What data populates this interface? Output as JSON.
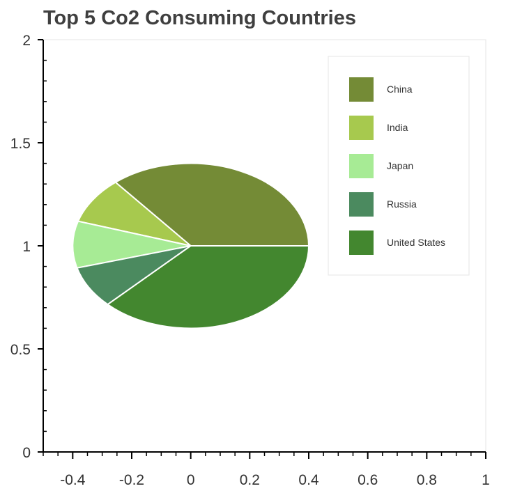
{
  "chart_data": {
    "type": "pie",
    "title": "Top 5 Co2 Consuming Countries",
    "xlabel": "",
    "ylabel": "",
    "xlim": [
      -0.5,
      1.0
    ],
    "ylim": [
      0,
      2
    ],
    "center": [
      0,
      1
    ],
    "radius": 0.4,
    "x_ticks": [
      -0.4,
      -0.2,
      0,
      0.2,
      0.4,
      0.6,
      0.8,
      1
    ],
    "x_tick_labels": [
      "-0.4",
      "-0.2",
      "0",
      "0.2",
      "0.4",
      "0.6",
      "0.8",
      "1"
    ],
    "y_ticks": [
      0,
      0.5,
      1,
      1.5,
      2
    ],
    "y_tick_labels": [
      "0",
      "0.5",
      "1",
      "1.5",
      "2"
    ],
    "grid": false,
    "legend_position": "top-right",
    "slices": [
      {
        "name": "China",
        "share": 0.36,
        "color": "#748b36"
      },
      {
        "name": "India",
        "share": 0.0918,
        "color": "#a7c94e"
      },
      {
        "name": "Japan",
        "share": 0.0915,
        "color": "#a7eb95"
      },
      {
        "name": "Russia",
        "share": 0.0825,
        "color": "#4b8a5f"
      },
      {
        "name": "United States",
        "share": 0.3742,
        "color": "#43872f"
      }
    ]
  }
}
